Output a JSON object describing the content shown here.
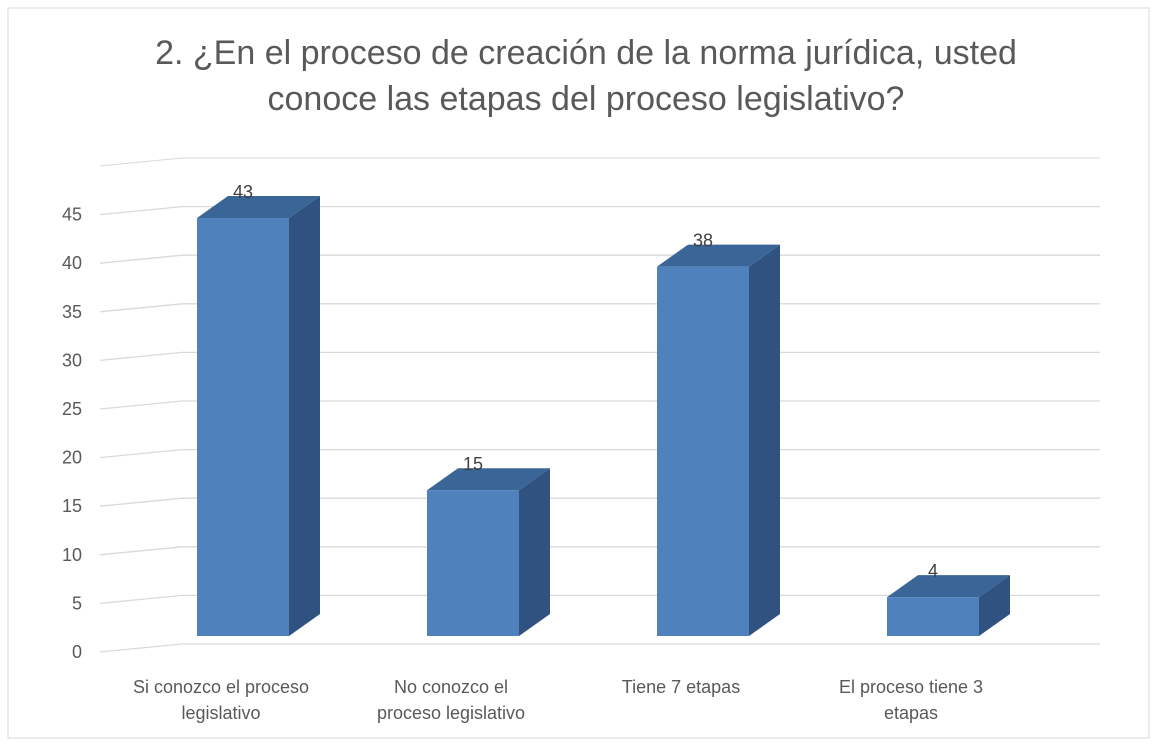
{
  "chart_data": {
    "type": "bar3d",
    "title": "2. ¿En el proceso de creación de la norma jurídica, usted\nconoce las etapas del proceso legislativo?",
    "categories": [
      "Si conozco el proceso\nlegislativo",
      "No conozco el\nproceso legislativo",
      "Tiene 7 etapas",
      "El proceso tiene 3\netapas"
    ],
    "values": [
      43,
      15,
      38,
      4
    ],
    "color": "#4f81bd",
    "ylim": [
      0,
      50
    ],
    "yticks": [
      0,
      5,
      10,
      15,
      20,
      25,
      30,
      35,
      40,
      45
    ],
    "grid": true
  }
}
